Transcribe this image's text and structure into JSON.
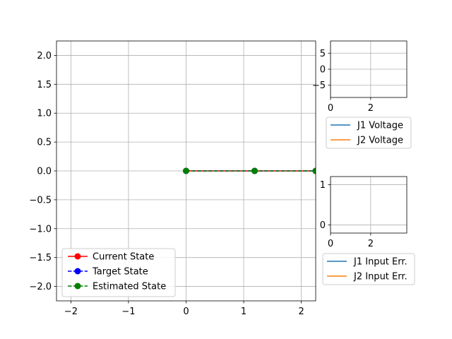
{
  "chart_data": [
    {
      "type": "line",
      "id": "arm",
      "xlim": [
        -2.25,
        2.25
      ],
      "ylim": [
        -2.25,
        2.25
      ],
      "xticks": [
        -2,
        -1,
        0,
        1,
        2
      ],
      "xtick_labels": [
        "−2",
        "−1",
        "0",
        "1",
        "2"
      ],
      "yticks": [
        -2.0,
        -1.5,
        -1.0,
        -0.5,
        0.0,
        0.5,
        1.0,
        1.5,
        2.0
      ],
      "ytick_labels": [
        "−2.0",
        "−1.5",
        "−1.0",
        "−0.5",
        "0.0",
        "0.5",
        "1.0",
        "1.5",
        "2.0"
      ],
      "grid": true,
      "legend_position": "lower-left",
      "series": [
        {
          "name": "Current State",
          "color": "#ff0000",
          "linestyle": "solid",
          "marker": "circle",
          "x": [
            0,
            1.19,
            2.25
          ],
          "y": [
            0,
            0,
            0
          ]
        },
        {
          "name": "Target State",
          "color": "#0000ff",
          "linestyle": "dashed",
          "marker": "circle",
          "x": [
            0,
            1.19,
            2.25
          ],
          "y": [
            0,
            0,
            0
          ]
        },
        {
          "name": "Estimated State",
          "color": "#008000",
          "linestyle": "dashed",
          "marker": "circle",
          "x": [
            0,
            1.19,
            2.25
          ],
          "y": [
            0,
            0,
            0
          ]
        }
      ]
    },
    {
      "type": "line",
      "id": "voltage",
      "xlim": [
        0,
        3.8
      ],
      "ylim": [
        -8.8,
        8.8
      ],
      "xticks": [
        0,
        2
      ],
      "xtick_labels": [
        "0",
        "2"
      ],
      "yticks": [
        -5,
        0,
        5
      ],
      "ytick_labels": [
        "−5",
        "0",
        "5"
      ],
      "grid": true,
      "legend_position": "below",
      "series": [
        {
          "name": "J1 Voltage",
          "color": "#1f77b4",
          "x": [],
          "y": []
        },
        {
          "name": "J2 Voltage",
          "color": "#ff7f0e",
          "x": [],
          "y": []
        }
      ]
    },
    {
      "type": "line",
      "id": "error",
      "xlim": [
        0,
        3.8
      ],
      "ylim": [
        -0.2,
        1.2
      ],
      "xticks": [
        0,
        2
      ],
      "xtick_labels": [
        "0",
        "2"
      ],
      "yticks": [
        0,
        1
      ],
      "ytick_labels": [
        "0",
        "1"
      ],
      "grid": true,
      "legend_position": "below",
      "series": [
        {
          "name": "J1 Input Err.",
          "color": "#1f77b4",
          "x": [],
          "y": []
        },
        {
          "name": "J2 Input Err.",
          "color": "#ff7f0e",
          "x": [],
          "y": []
        }
      ]
    }
  ]
}
